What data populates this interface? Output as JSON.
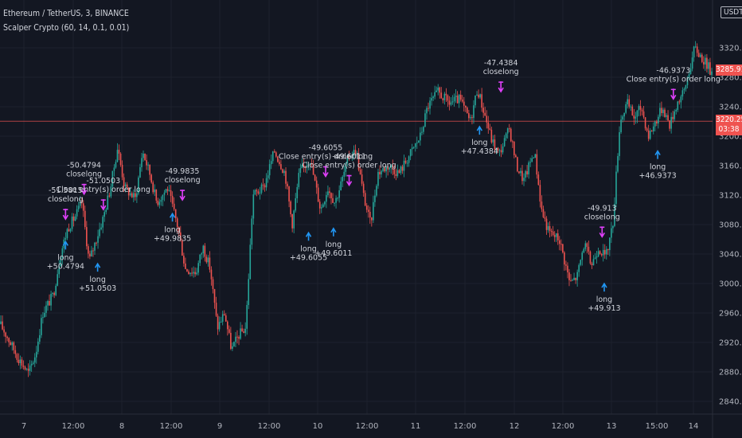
{
  "header": {
    "symbol_line": "Ethereum / TetherUS, 3, BINANCE",
    "indicator_line": "Scalper Crypto (60, 14, 0.1, 0.01)",
    "currency_button": "USDT"
  },
  "price_labels": {
    "last_price": "3285.91",
    "ref_price": "3220.25",
    "ref_countdown": "03:38"
  },
  "chart_data": {
    "type": "candlestick",
    "title": "",
    "ylim": [
      2820,
      3340
    ],
    "y_ticks": [
      2840,
      2880,
      2920,
      2960,
      3000,
      3040,
      3080,
      3120,
      3160,
      3200,
      3240,
      3280,
      3320
    ],
    "x_ticks": [
      "7",
      "12:00",
      "8",
      "12:00",
      "9",
      "12:00",
      "10",
      "12:00",
      "11",
      "12:00",
      "12",
      "12:00",
      "13",
      "15:00",
      "14"
    ],
    "horizontal_line": 3220.25,
    "bull_color": "#26a69a",
    "bear_color": "#ef5350",
    "price_path": [
      [
        0,
        2945
      ],
      [
        0.01,
        2928
      ],
      [
        0.025,
        2900
      ],
      [
        0.04,
        2878
      ],
      [
        0.05,
        2905
      ],
      [
        0.06,
        2960
      ],
      [
        0.075,
        2985
      ],
      [
        0.085,
        3040
      ],
      [
        0.095,
        3075
      ],
      [
        0.105,
        3090
      ],
      [
        0.115,
        3110
      ],
      [
        0.125,
        3030
      ],
      [
        0.135,
        3060
      ],
      [
        0.145,
        3090
      ],
      [
        0.155,
        3130
      ],
      [
        0.165,
        3185
      ],
      [
        0.175,
        3130
      ],
      [
        0.19,
        3115
      ],
      [
        0.2,
        3180
      ],
      [
        0.21,
        3150
      ],
      [
        0.22,
        3110
      ],
      [
        0.235,
        3130
      ],
      [
        0.25,
        3075
      ],
      [
        0.26,
        3020
      ],
      [
        0.275,
        3015
      ],
      [
        0.285,
        3050
      ],
      [
        0.295,
        3020
      ],
      [
        0.305,
        2940
      ],
      [
        0.315,
        2960
      ],
      [
        0.325,
        2910
      ],
      [
        0.335,
        2930
      ],
      [
        0.345,
        2940
      ],
      [
        0.355,
        3120
      ],
      [
        0.37,
        3130
      ],
      [
        0.385,
        3180
      ],
      [
        0.4,
        3150
      ],
      [
        0.41,
        3080
      ],
      [
        0.42,
        3150
      ],
      [
        0.435,
        3170
      ],
      [
        0.45,
        3100
      ],
      [
        0.46,
        3130
      ],
      [
        0.47,
        3110
      ],
      [
        0.48,
        3140
      ],
      [
        0.49,
        3175
      ],
      [
        0.5,
        3180
      ],
      [
        0.51,
        3120
      ],
      [
        0.52,
        3080
      ],
      [
        0.53,
        3150
      ],
      [
        0.545,
        3160
      ],
      [
        0.56,
        3150
      ],
      [
        0.575,
        3175
      ],
      [
        0.59,
        3200
      ],
      [
        0.6,
        3240
      ],
      [
        0.615,
        3260
      ],
      [
        0.63,
        3245
      ],
      [
        0.645,
        3250
      ],
      [
        0.66,
        3220
      ],
      [
        0.67,
        3265
      ],
      [
        0.68,
        3230
      ],
      [
        0.69,
        3195
      ],
      [
        0.7,
        3175
      ],
      [
        0.715,
        3210
      ],
      [
        0.725,
        3160
      ],
      [
        0.735,
        3140
      ],
      [
        0.75,
        3180
      ],
      [
        0.76,
        3100
      ],
      [
        0.77,
        3070
      ],
      [
        0.785,
        3060
      ],
      [
        0.8,
        3000
      ],
      [
        0.81,
        3010
      ],
      [
        0.82,
        3055
      ],
      [
        0.83,
        3025
      ],
      [
        0.84,
        3050
      ],
      [
        0.85,
        3035
      ],
      [
        0.86,
        3080
      ],
      [
        0.87,
        3220
      ],
      [
        0.88,
        3245
      ],
      [
        0.89,
        3225
      ],
      [
        0.9,
        3240
      ],
      [
        0.91,
        3200
      ],
      [
        0.92,
        3220
      ],
      [
        0.93,
        3240
      ],
      [
        0.94,
        3215
      ],
      [
        0.95,
        3245
      ],
      [
        0.96,
        3260
      ],
      [
        0.975,
        3320
      ],
      [
        0.99,
        3300
      ],
      [
        1,
        3285
      ]
    ],
    "annotations": [
      {
        "text": [
          "-51.5815",
          "closelong"
        ],
        "kind": "exit",
        "t": 0.092,
        "price": 3082
      },
      {
        "text": [
          "long",
          "+50.4794"
        ],
        "kind": "entry",
        "t": 0.092,
        "price": 3072
      },
      {
        "text": [
          "-50.4794",
          "closelong"
        ],
        "kind": "exit",
        "t": 0.118,
        "price": 3116
      },
      {
        "text": [
          "-51.0503",
          "Close entry(s) order long"
        ],
        "kind": "exit",
        "t": 0.145,
        "price": 3095
      },
      {
        "text": [
          "long",
          "+51.0503"
        ],
        "kind": "entry",
        "t": 0.137,
        "price": 3042
      },
      {
        "text": [
          "-49.9835",
          "closelong"
        ],
        "kind": "exit",
        "t": 0.256,
        "price": 3108
      },
      {
        "text": [
          "long",
          "+49.9835"
        ],
        "kind": "entry",
        "t": 0.242,
        "price": 3110
      },
      {
        "text": [
          "long",
          "+49.6055"
        ],
        "kind": "entry",
        "t": 0.433,
        "price": 3084
      },
      {
        "text": [
          "-49.6055",
          "Close entry(s) order long"
        ],
        "kind": "exit",
        "t": 0.457,
        "price": 3140
      },
      {
        "text": [
          "long",
          "+49.6011"
        ],
        "kind": "entry",
        "t": 0.468,
        "price": 3090
      },
      {
        "text": [
          "-49.6011",
          "Close entry(s) order long"
        ],
        "kind": "exit",
        "t": 0.49,
        "price": 3128
      },
      {
        "text": [
          "long",
          "+47.4384"
        ],
        "kind": "entry",
        "t": 0.673,
        "price": 3228
      },
      {
        "text": [
          "-47.4384",
          "closelong"
        ],
        "kind": "exit",
        "t": 0.703,
        "price": 3255
      },
      {
        "text": [
          "-49.913",
          "closelong"
        ],
        "kind": "exit",
        "t": 0.845,
        "price": 3058
      },
      {
        "text": [
          "long",
          "+49.913"
        ],
        "kind": "entry",
        "t": 0.848,
        "price": 3015
      },
      {
        "text": [
          "long",
          "+46.9373"
        ],
        "kind": "entry",
        "t": 0.923,
        "price": 3195
      },
      {
        "text": [
          "-46.9373",
          "Close entry(s) order long"
        ],
        "kind": "exit",
        "t": 0.945,
        "price": 3245
      }
    ]
  }
}
